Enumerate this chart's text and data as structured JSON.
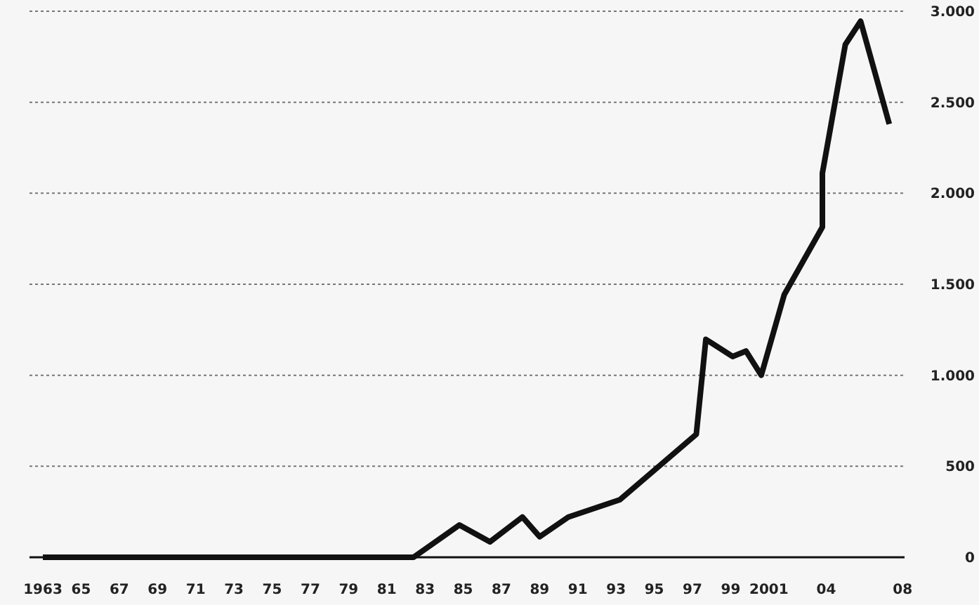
{
  "chart_data": {
    "type": "line",
    "x": [
      1963,
      1982.4,
      1984.8,
      1986.4,
      1988.1,
      1989.0,
      1990.5,
      1993.2,
      1997.2,
      1997.7,
      1999.1,
      1999.8,
      2000.6,
      2001.8,
      2003.8,
      2003.8,
      2005.0,
      2005.8,
      2007.3
    ],
    "series": [
      {
        "color": "#111111",
        "values": [
          0,
          0,
          177,
          85,
          221,
          113,
          221,
          316,
          676,
          1197,
          1103,
          1133,
          1000,
          1442,
          1814,
          2110,
          2817,
          2945,
          2380
        ]
      }
    ],
    "xlim": [
      1962.3,
      2008.1
    ],
    "xticks": [
      {
        "value": 1963,
        "label": "1963"
      },
      {
        "value": 1965,
        "label": "65"
      },
      {
        "value": 1967,
        "label": "67"
      },
      {
        "value": 1969,
        "label": "69"
      },
      {
        "value": 1971,
        "label": "71"
      },
      {
        "value": 1973,
        "label": "73"
      },
      {
        "value": 1975,
        "label": "75"
      },
      {
        "value": 1977,
        "label": "77"
      },
      {
        "value": 1979,
        "label": "79"
      },
      {
        "value": 1981,
        "label": "81"
      },
      {
        "value": 1983,
        "label": "83"
      },
      {
        "value": 1985,
        "label": "85"
      },
      {
        "value": 1987,
        "label": "87"
      },
      {
        "value": 1989,
        "label": "89"
      },
      {
        "value": 1991,
        "label": "91"
      },
      {
        "value": 1993,
        "label": "93"
      },
      {
        "value": 1995,
        "label": "95"
      },
      {
        "value": 1997,
        "label": "97"
      },
      {
        "value": 1999,
        "label": "99"
      },
      {
        "value": 2001,
        "label": "2001"
      },
      {
        "value": 2004,
        "label": "04"
      },
      {
        "value": 2008,
        "label": "08"
      }
    ],
    "ylim": [
      0,
      3000
    ],
    "yticks": [
      {
        "value": 0,
        "label": "0"
      },
      {
        "value": 500,
        "label": "500"
      },
      {
        "value": 1000,
        "label": "1.000"
      },
      {
        "value": 1500,
        "label": "1.500"
      },
      {
        "value": 2000,
        "label": "2.000"
      },
      {
        "value": 2500,
        "label": "2.500"
      },
      {
        "value": 3000,
        "label": "3.000"
      }
    ],
    "grid": "y",
    "line_style": "solid",
    "marker": "none"
  }
}
